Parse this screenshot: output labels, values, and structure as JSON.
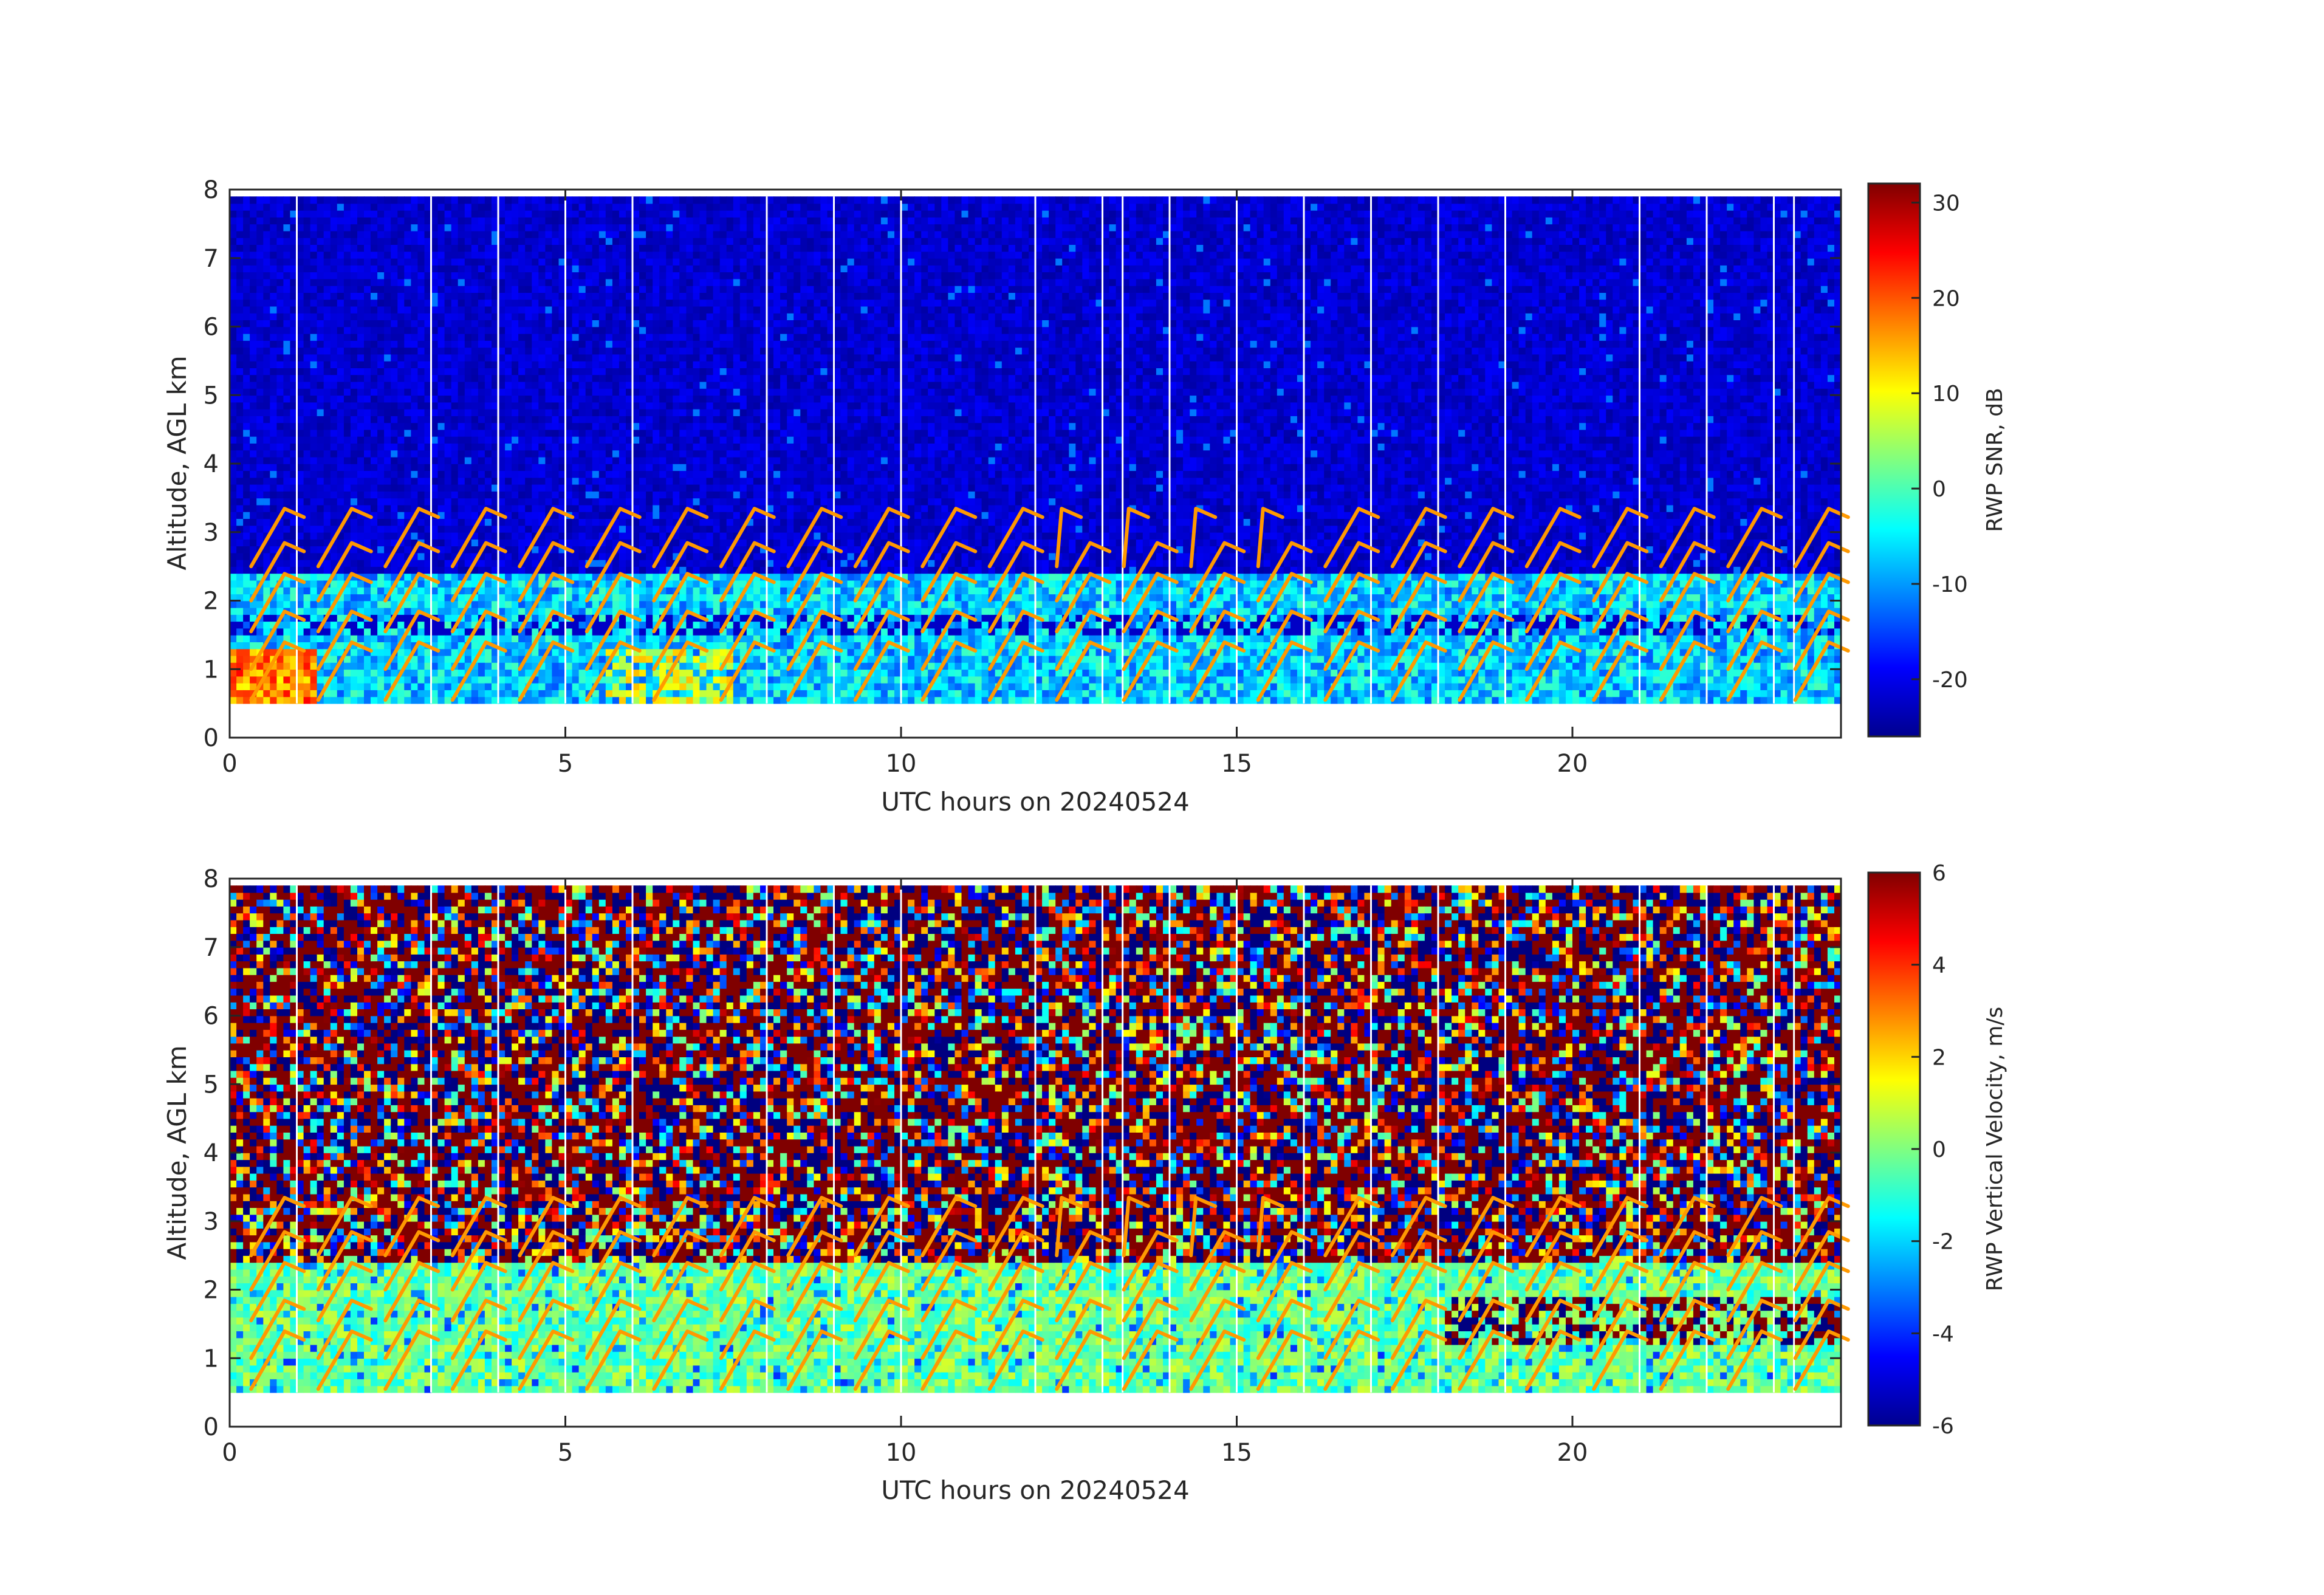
{
  "chart_data": [
    {
      "type": "heatmap",
      "field": "snr",
      "xlabel": "UTC hours on 20240524",
      "ylabel": "Altitude, AGL km",
      "xlim": [
        0,
        24
      ],
      "ylim": [
        0,
        8
      ],
      "x_ticks": [
        0,
        5,
        10,
        15,
        20
      ],
      "y_ticks": [
        0,
        1,
        2,
        3,
        4,
        5,
        6,
        7,
        8
      ],
      "colorbar": {
        "label": "RWP SNR, dB",
        "min": -26,
        "max": 32,
        "ticks": [
          30,
          20,
          10,
          0,
          -10,
          -20
        ],
        "colormap": "jet"
      },
      "data_range": {
        "x": [
          0,
          24
        ],
        "y": [
          0.5,
          7.9
        ]
      },
      "overlay": "wind barbs (orange)"
    },
    {
      "type": "heatmap",
      "field": "velocity",
      "xlabel": "UTC hours on 20240524",
      "ylabel": "Altitude, AGL km",
      "xlim": [
        0,
        24
      ],
      "ylim": [
        0,
        8
      ],
      "x_ticks": [
        0,
        5,
        10,
        15,
        20
      ],
      "y_ticks": [
        0,
        1,
        2,
        3,
        4,
        5,
        6,
        7,
        8
      ],
      "colorbar": {
        "label": "RWP Vertical Velocity, m/s",
        "min": -6,
        "max": 6,
        "ticks": [
          6,
          4,
          2,
          0,
          -2,
          -4,
          -6
        ],
        "colormap": "jet"
      },
      "data_range": {
        "x": [
          0,
          24
        ],
        "y": [
          0.5,
          7.9
        ]
      },
      "overlay": "wind barbs (orange)"
    }
  ],
  "gap_hours": [
    1,
    3,
    4,
    5,
    6,
    8,
    9,
    10,
    12,
    13,
    13.3,
    14,
    15,
    16,
    17,
    18,
    19,
    21,
    22,
    23,
    23.3
  ],
  "barb_levels_km": [
    0.55,
    1.0,
    1.55,
    2.0,
    2.5
  ],
  "barb_hours": [
    0.5,
    1.5,
    2.5,
    3.5,
    4.5,
    5.5,
    6.5,
    7.5,
    8.5,
    9.5,
    10.5,
    11.5,
    12.5,
    13.5,
    14.5,
    15.5,
    16.5,
    17.5,
    18.5,
    19.5,
    20.5,
    21.5,
    22.5,
    23.5
  ],
  "colors": {
    "barb": "#ff9900",
    "gap": "#ffffff",
    "axis": "#262626"
  }
}
